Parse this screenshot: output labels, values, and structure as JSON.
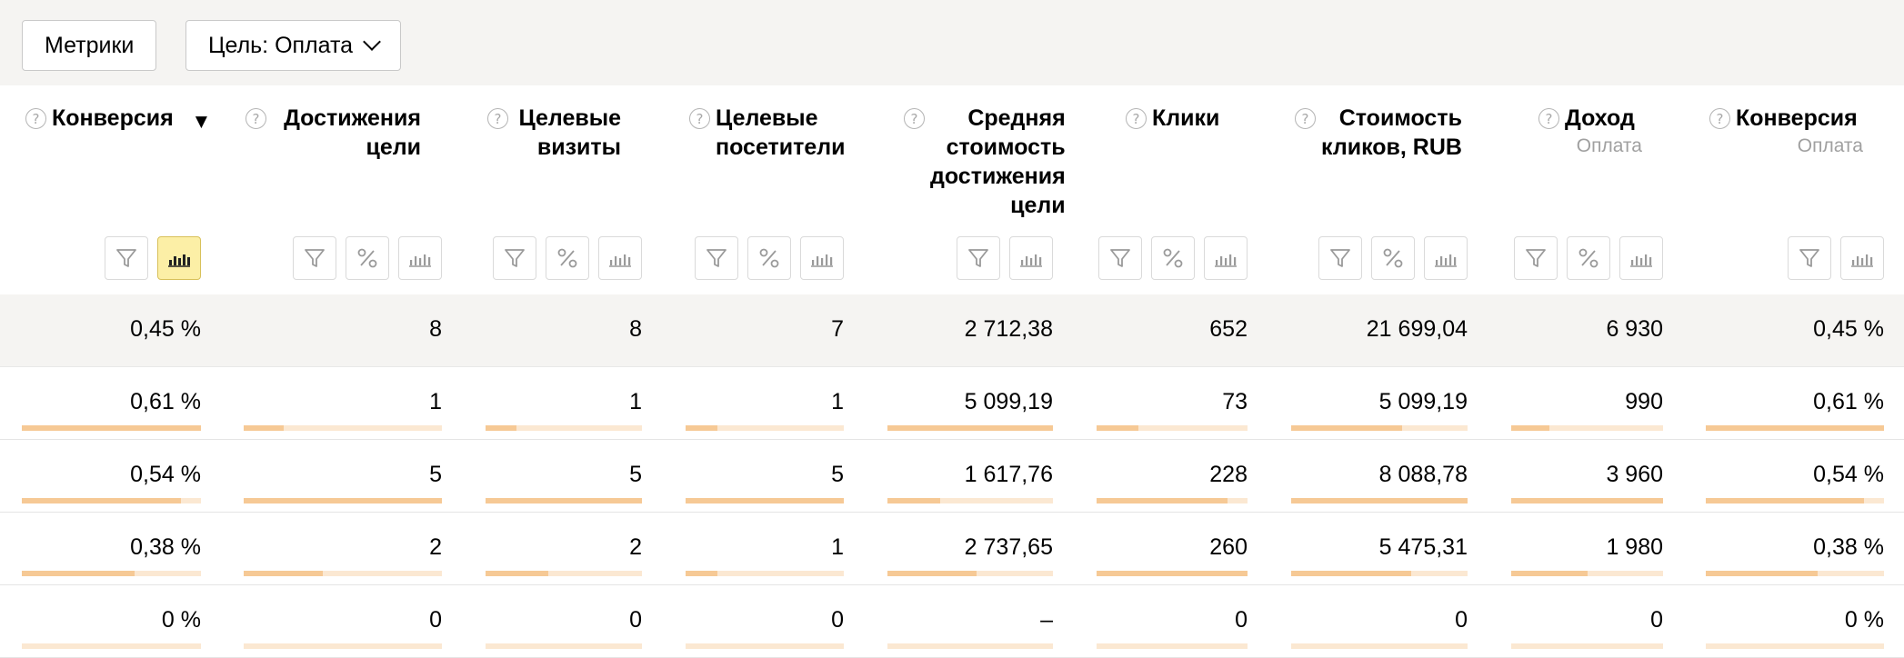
{
  "toolbar": {
    "metrics_label": "Метрики",
    "goal_label": "Цель: Оплата"
  },
  "columns": [
    {
      "title_lines": [
        "Конверсия"
      ],
      "sub": "",
      "sort": "▼",
      "buttons": [
        "filter",
        "chart"
      ],
      "active": "chart"
    },
    {
      "title_lines": [
        "Достижения",
        "цели"
      ],
      "sub": "",
      "sort": "",
      "buttons": [
        "filter",
        "percent",
        "chart"
      ],
      "active": ""
    },
    {
      "title_lines": [
        "Целевые",
        "визиты"
      ],
      "sub": "",
      "sort": "",
      "buttons": [
        "filter",
        "percent",
        "chart"
      ],
      "active": ""
    },
    {
      "title_lines": [
        "Целевые",
        "посетители"
      ],
      "sub": "",
      "sort": "",
      "buttons": [
        "filter",
        "percent",
        "chart"
      ],
      "active": ""
    },
    {
      "title_lines": [
        "Средняя",
        "стоимость",
        "достижения",
        "цели"
      ],
      "sub": "",
      "sort": "",
      "buttons": [
        "filter",
        "chart"
      ],
      "active": ""
    },
    {
      "title_lines": [
        "Клики"
      ],
      "sub": "",
      "sort": "",
      "buttons": [
        "filter",
        "percent",
        "chart"
      ],
      "active": ""
    },
    {
      "title_lines": [
        "Стоимость",
        "кликов, RUB"
      ],
      "sub": "",
      "sort": "",
      "buttons": [
        "filter",
        "percent",
        "chart"
      ],
      "active": ""
    },
    {
      "title_lines": [
        "Доход"
      ],
      "sub": "Оплата",
      "sort": "",
      "buttons": [
        "filter",
        "percent",
        "chart"
      ],
      "active": ""
    },
    {
      "title_lines": [
        "Конверсия"
      ],
      "sub": "Оплата",
      "sort": "",
      "buttons": [
        "filter",
        "chart"
      ],
      "active": ""
    }
  ],
  "totals": [
    "0,45 %",
    "8",
    "8",
    "7",
    "2 712,38",
    "652",
    "21 699,04",
    "6 930",
    "0,45 %"
  ],
  "rows": [
    {
      "values": [
        "0,61 %",
        "1",
        "1",
        "1",
        "5 099,19",
        "73",
        "5 099,19",
        "990",
        "0,61 %"
      ],
      "fills": [
        1.0,
        0.2,
        0.2,
        0.2,
        1.0,
        0.28,
        0.63,
        0.25,
        1.0
      ]
    },
    {
      "values": [
        "0,54 %",
        "5",
        "5",
        "5",
        "1 617,76",
        "228",
        "8 088,78",
        "3 960",
        "0,54 %"
      ],
      "fills": [
        0.89,
        1.0,
        1.0,
        1.0,
        0.32,
        0.87,
        1.0,
        1.0,
        0.89
      ]
    },
    {
      "values": [
        "0,38 %",
        "2",
        "2",
        "1",
        "2 737,65",
        "260",
        "5 475,31",
        "1 980",
        "0,38 %"
      ],
      "fills": [
        0.63,
        0.4,
        0.4,
        0.2,
        0.54,
        1.0,
        0.68,
        0.5,
        0.63
      ]
    },
    {
      "values": [
        "0 %",
        "0",
        "0",
        "0",
        "–",
        "0",
        "0",
        "0",
        "0 %"
      ],
      "fills": [
        0,
        0,
        0,
        0,
        0,
        0,
        0,
        0,
        0
      ]
    }
  ]
}
